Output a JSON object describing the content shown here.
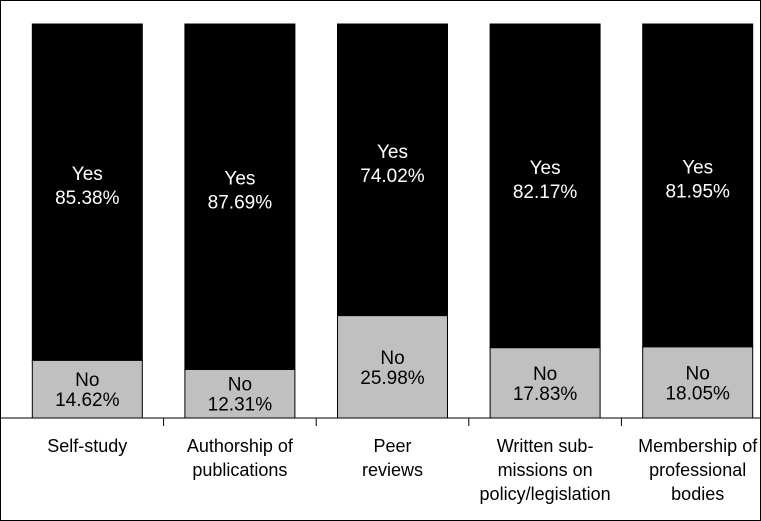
{
  "chart_data": {
    "type": "bar",
    "stacked": true,
    "percent": true,
    "categories": [
      [
        "Self-study"
      ],
      [
        "Authorship of",
        "publications"
      ],
      [
        "Peer",
        "reviews"
      ],
      [
        "Written sub-",
        "missions on",
        "policy/legislation"
      ],
      [
        "Membership of",
        "professional",
        "bodies"
      ]
    ],
    "series": [
      {
        "name": "No",
        "values": [
          14.62,
          12.31,
          25.98,
          17.83,
          18.05
        ],
        "labels": [
          "14.62%",
          "12.31%",
          "25.98%",
          "17.83%",
          "18.05%"
        ],
        "color": "#c0c0c0",
        "text_color": "#000000"
      },
      {
        "name": "Yes",
        "values": [
          85.38,
          87.69,
          74.02,
          82.17,
          81.95
        ],
        "labels": [
          "85.38%",
          "87.69%",
          "74.02%",
          "82.17%",
          "81.95%"
        ],
        "color": "#000000",
        "text_color": "#ffffff"
      }
    ],
    "ylim": [
      0,
      100
    ],
    "grid": false,
    "legend": "none"
  }
}
